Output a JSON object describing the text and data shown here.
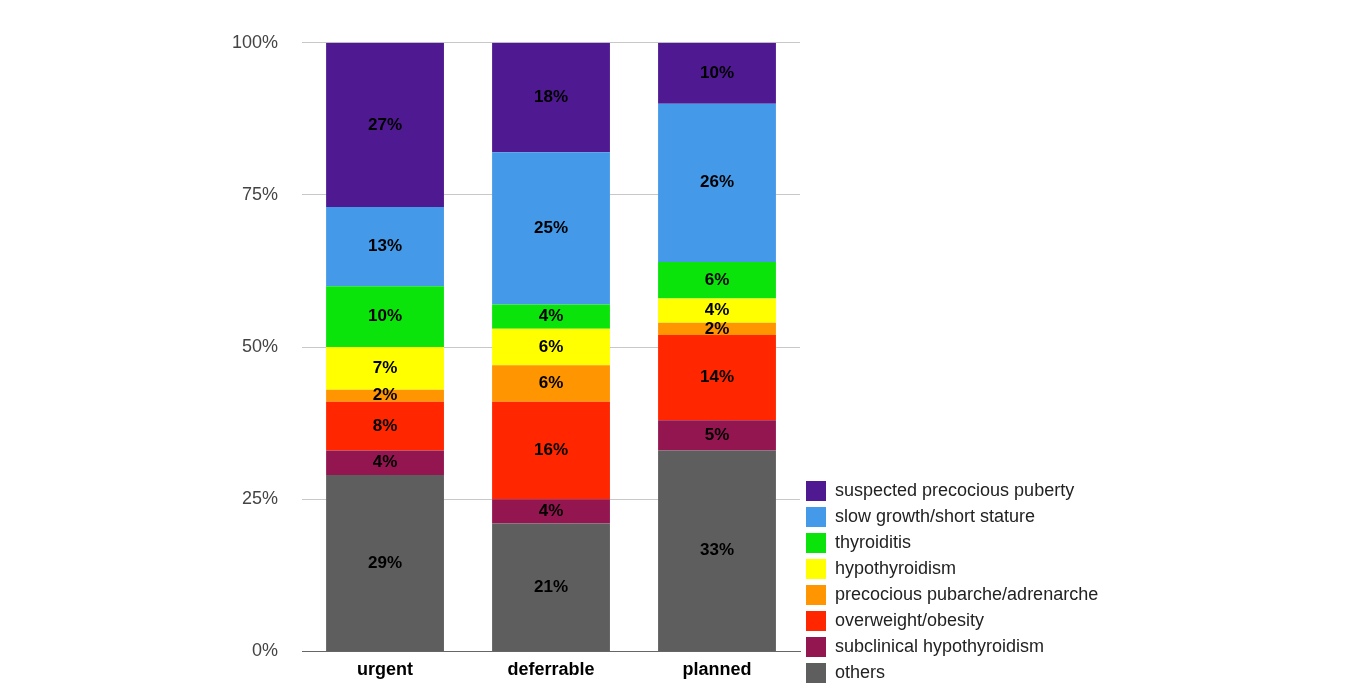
{
  "chart_data": {
    "type": "bar",
    "stacked": true,
    "categories": [
      "urgent",
      "deferrable",
      "planned"
    ],
    "ylim": [
      0,
      100
    ],
    "yticks": [
      {
        "value": 0,
        "label": "0%"
      },
      {
        "value": 25,
        "label": "25%"
      },
      {
        "value": 50,
        "label": "50%"
      },
      {
        "value": 75,
        "label": "75%"
      },
      {
        "value": 100,
        "label": "100%"
      }
    ],
    "grid": "y",
    "legend": "bottom right",
    "series": [
      {
        "name": "others",
        "color": "#5e5e5e",
        "values": [
          29,
          21,
          33
        ],
        "value_labels": [
          "29%",
          "21%",
          "33%"
        ]
      },
      {
        "name": "subclinical hypothyroidism",
        "color": "#941651",
        "values": [
          4,
          4,
          5
        ],
        "value_labels": [
          "4%",
          "4%",
          "5%"
        ]
      },
      {
        "name": "overweight/obesity",
        "color": "#ff2600",
        "values": [
          8,
          16,
          14
        ],
        "value_labels": [
          "8%",
          "16%",
          "14%"
        ]
      },
      {
        "name": "precocious pubarche/adrenarche",
        "color": "#ff9500",
        "values": [
          2,
          6,
          2
        ],
        "value_labels": [
          "2%",
          "6%",
          "2%"
        ]
      },
      {
        "name": "hypothyroidism",
        "color": "#ffff00",
        "values": [
          7,
          6,
          4
        ],
        "value_labels": [
          "7%",
          "6%",
          "4%"
        ]
      },
      {
        "name": "thyroiditis",
        "color": "#0be40b",
        "values": [
          10,
          4,
          6
        ],
        "value_labels": [
          "10%",
          "4%",
          "6%"
        ]
      },
      {
        "name": "slow growth/short stature",
        "color": "#4499e8",
        "values": [
          13,
          25,
          26
        ],
        "value_labels": [
          "13%",
          "25%",
          "26%"
        ]
      },
      {
        "name": "suspected precocious puberty",
        "color": "#4f1a91",
        "values": [
          27,
          18,
          10
        ],
        "value_labels": [
          "27%",
          "18%",
          "10%"
        ]
      }
    ]
  }
}
